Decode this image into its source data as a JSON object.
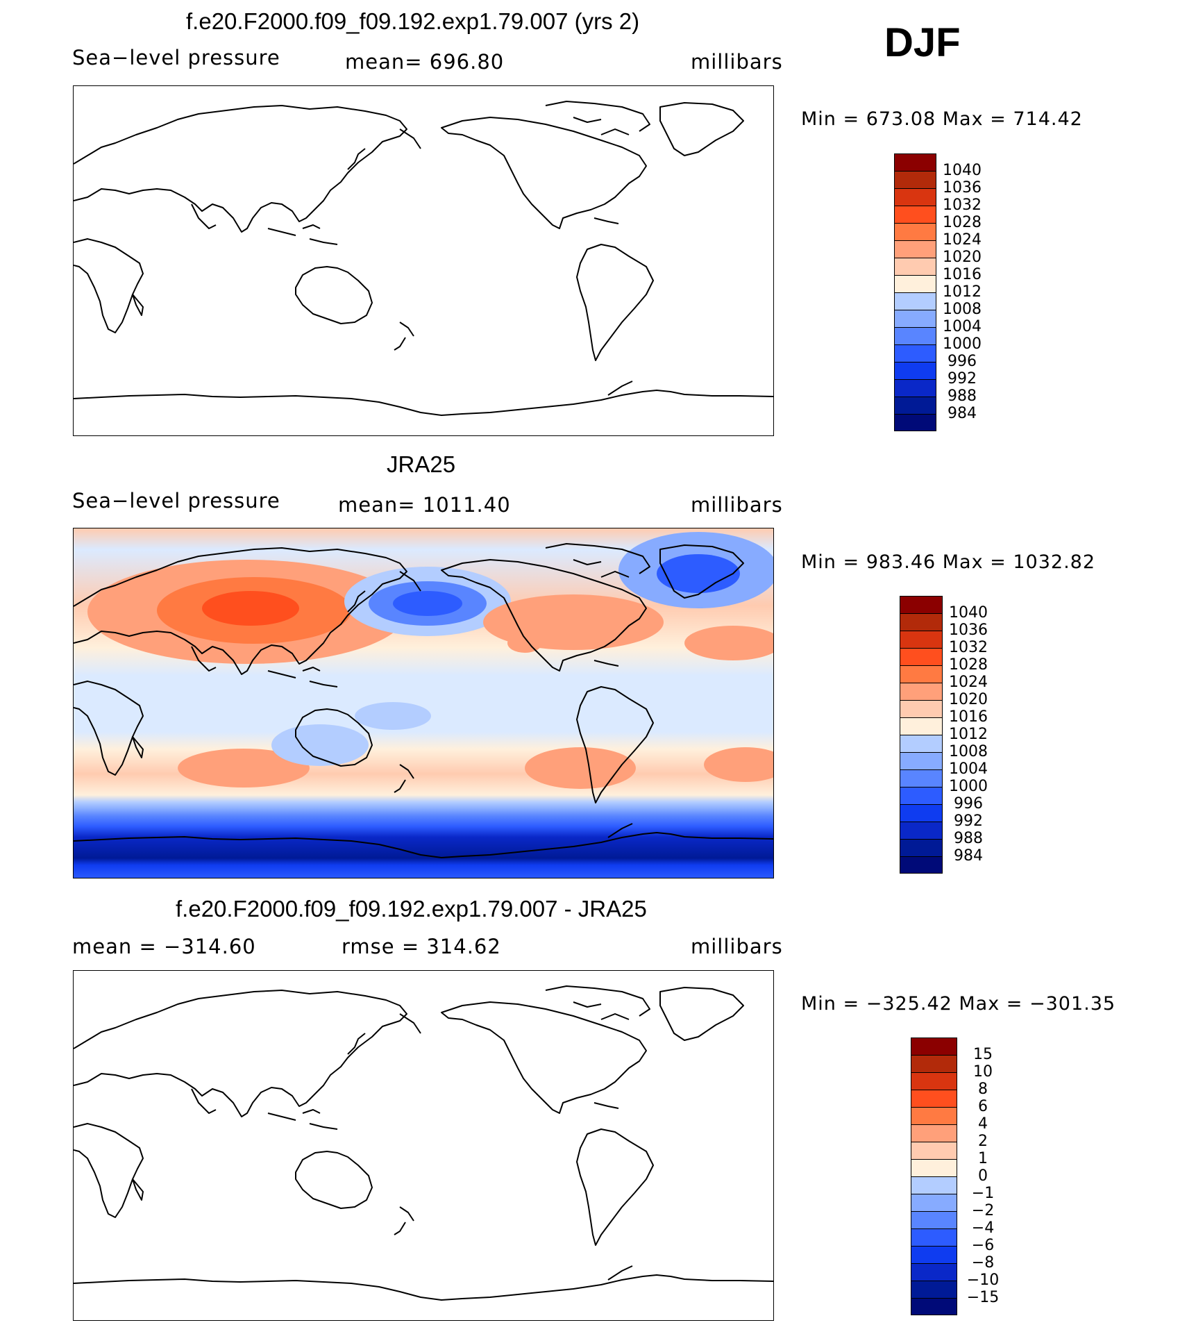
{
  "season": "DJF",
  "units": "millibars",
  "panels": [
    {
      "title": "f.e20.F2000.f09_f09.192.exp1.79.007 (yrs 2)",
      "left_label": "Sea−level pressure",
      "center_label": "mean=  696.80",
      "right_label": "millibars",
      "minmax": "Min  =  673.08  Max  =  714.42",
      "filled": false
    },
    {
      "title": "JRA25",
      "left_label": "Sea−level pressure",
      "center_label": "mean=  1011.40",
      "right_label": "millibars",
      "minmax": "Min  =  983.46  Max  =  1032.82",
      "filled": true
    },
    {
      "title": "f.e20.F2000.f09_f09.192.exp1.79.007 - JRA25",
      "left_label": "mean  =  −314.60",
      "center_label": "rmse  =  314.62",
      "right_label": "millibars",
      "minmax": "Min  =  −325.42  Max  =  −301.35",
      "filled": false
    }
  ],
  "colorbar_colors": [
    "#8b0000",
    "#b22a0a",
    "#d93510",
    "#ff4f1e",
    "#ff7a42",
    "#ffa07a",
    "#ffcbb0",
    "#fff0dc",
    "#dbeaff",
    "#b3cdff",
    "#87abff",
    "#5985ff",
    "#2d5cff",
    "#0f3cf0",
    "#0a28c8",
    "#001a96",
    "#000a78"
  ],
  "colorbars": [
    {
      "labels": [
        "1040",
        "1036",
        "1032",
        "1028",
        "1024",
        "1020",
        "1016",
        "1012",
        "1008",
        "1004",
        "1000",
        "996",
        "992",
        "988",
        "984"
      ]
    },
    {
      "labels": [
        "1040",
        "1036",
        "1032",
        "1028",
        "1024",
        "1020",
        "1016",
        "1012",
        "1008",
        "1004",
        "1000",
        "996",
        "992",
        "988",
        "984"
      ]
    },
    {
      "labels": [
        "15",
        "10",
        "8",
        "6",
        "4",
        "2",
        "1",
        "0",
        "−1",
        "−2",
        "−4",
        "−6",
        "−8",
        "−10",
        "−15"
      ]
    }
  ]
}
